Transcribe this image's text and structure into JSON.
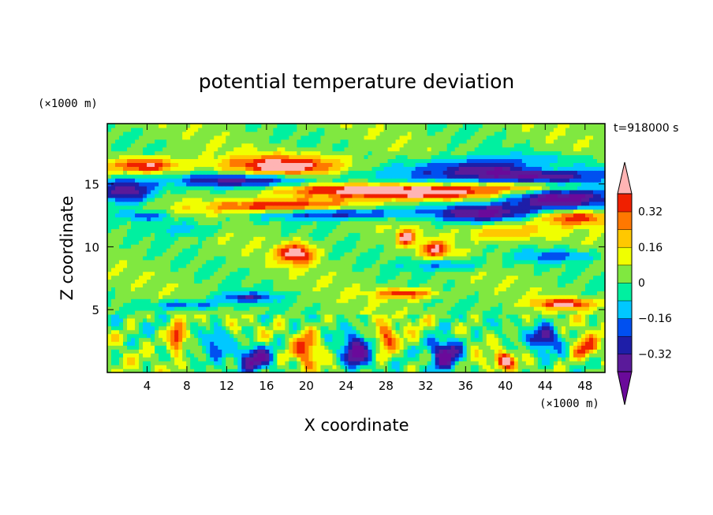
{
  "chart_data": {
    "type": "heatmap",
    "title": "potential temperature deviation",
    "xlabel": "X coordinate",
    "ylabel": "Z coordinate",
    "x_unit": "(×1000 m)",
    "y_unit": "(×1000 m)",
    "time_label": "t=918000 s",
    "xlim": [
      0,
      50
    ],
    "ylim": [
      0,
      19.8
    ],
    "x_ticks": [
      4,
      8,
      12,
      16,
      20,
      24,
      28,
      32,
      36,
      40,
      44,
      48
    ],
    "x_tick_labels": [
      "4",
      "8",
      "12",
      "16",
      "20",
      "24",
      "28",
      "32",
      "36",
      "40",
      "44",
      "48"
    ],
    "y_ticks": [
      5,
      10,
      15
    ],
    "y_tick_labels": [
      "5",
      "10",
      "15"
    ],
    "colorbar": {
      "levels": [
        -0.4,
        -0.32,
        -0.24,
        -0.16,
        -0.08,
        0,
        0.08,
        0.16,
        0.24,
        0.32,
        0.4
      ],
      "colors": [
        "#5a1a9a",
        "#1e1ea8",
        "#0050f0",
        "#00c8ff",
        "#00f0a0",
        "#80e840",
        "#f0ff00",
        "#ffc800",
        "#ff7800",
        "#f02000",
        "#ffb4b4"
      ],
      "under_color": "#6a0a9a",
      "over_color": "#ffb4b4",
      "tick_values": [
        -0.32,
        -0.16,
        0,
        0.16,
        0.32
      ],
      "tick_labels": [
        "−0.32",
        "−0.16",
        "0",
        "0.16",
        "0.32"
      ]
    },
    "features": [
      {
        "x": 4,
        "z": 16.5,
        "value": 0.4,
        "sx": 3.5,
        "sz": 0.6
      },
      {
        "x": 18,
        "z": 16.5,
        "value": 0.45,
        "sx": 6,
        "sz": 0.8
      },
      {
        "x": 14,
        "z": 15.3,
        "value": -0.4,
        "sx": 7,
        "sz": 0.6
      },
      {
        "x": 44,
        "z": 16.3,
        "value": 0.3,
        "sx": 4,
        "sz": 0.5
      },
      {
        "x": 40,
        "z": 16.0,
        "value": -0.5,
        "sx": 10,
        "sz": 1.0
      },
      {
        "x": 2,
        "z": 14.5,
        "value": -0.45,
        "sx": 3,
        "sz": 1.0
      },
      {
        "x": 25,
        "z": 14.6,
        "value": 0.3,
        "sx": 10,
        "sz": 0.5
      },
      {
        "x": 32,
        "z": 14.3,
        "value": 0.4,
        "sx": 8,
        "sz": 0.6
      },
      {
        "x": 43,
        "z": 14.8,
        "value": 0.45,
        "sx": 6,
        "sz": 0.5
      },
      {
        "x": 45,
        "z": 14.0,
        "value": -0.5,
        "sx": 6,
        "sz": 1.2
      },
      {
        "x": 17,
        "z": 13.2,
        "value": 0.45,
        "sx": 7,
        "sz": 0.6
      },
      {
        "x": 22,
        "z": 12.7,
        "value": -0.4,
        "sx": 8,
        "sz": 0.5
      },
      {
        "x": 38,
        "z": 12.7,
        "value": -0.4,
        "sx": 5,
        "sz": 0.7
      },
      {
        "x": 47,
        "z": 12.4,
        "value": 0.4,
        "sx": 4,
        "sz": 0.6
      },
      {
        "x": 4,
        "z": 12.5,
        "value": -0.25,
        "sx": 2.5,
        "sz": 0.4
      },
      {
        "x": 19,
        "z": 9.5,
        "value": 0.45,
        "sx": 1.8,
        "sz": 0.8
      },
      {
        "x": 33,
        "z": 9.8,
        "value": 0.35,
        "sx": 1.5,
        "sz": 0.7
      },
      {
        "x": 40,
        "z": 11.2,
        "value": 0.25,
        "sx": 4,
        "sz": 0.7
      },
      {
        "x": 30,
        "z": 10.8,
        "value": 0.45,
        "sx": 0.8,
        "sz": 0.6
      },
      {
        "x": 8,
        "z": 11.5,
        "value": -0.18,
        "sx": 3,
        "sz": 0.6
      },
      {
        "x": 34,
        "z": 8.6,
        "value": -0.22,
        "sx": 4,
        "sz": 0.5
      },
      {
        "x": 45,
        "z": 9.3,
        "value": -0.22,
        "sx": 4,
        "sz": 0.5
      },
      {
        "x": 30,
        "z": 6.3,
        "value": 0.35,
        "sx": 3,
        "sz": 0.4
      },
      {
        "x": 46,
        "z": 5.5,
        "value": 0.4,
        "sx": 3,
        "sz": 0.4
      },
      {
        "x": 14,
        "z": 6.0,
        "value": -0.3,
        "sx": 3,
        "sz": 0.4
      },
      {
        "x": 8,
        "z": 5.4,
        "value": -0.25,
        "sx": 4,
        "sz": 0.4
      },
      {
        "x": 7,
        "z": 2.8,
        "value": 0.45,
        "sx": 0.8,
        "sz": 1.1
      },
      {
        "x": 15,
        "z": 1.2,
        "value": -0.45,
        "sx": 1.8,
        "sz": 1.0
      },
      {
        "x": 20,
        "z": 2.0,
        "value": 0.3,
        "sx": 1.2,
        "sz": 1.5
      },
      {
        "x": 25,
        "z": 1.6,
        "value": -0.5,
        "sx": 1.4,
        "sz": 1.2
      },
      {
        "x": 28,
        "z": 2.6,
        "value": 0.35,
        "sx": 1.0,
        "sz": 1.1
      },
      {
        "x": 34,
        "z": 1.6,
        "value": -0.5,
        "sx": 1.6,
        "sz": 1.3
      },
      {
        "x": 40,
        "z": 1.0,
        "value": 0.45,
        "sx": 1.0,
        "sz": 0.6
      },
      {
        "x": 44,
        "z": 2.8,
        "value": -0.4,
        "sx": 1.4,
        "sz": 1.0
      },
      {
        "x": 48,
        "z": 2.0,
        "value": 0.3,
        "sx": 1.2,
        "sz": 1.0
      },
      {
        "x": 11,
        "z": 2.6,
        "value": -0.25,
        "sx": 1.2,
        "sz": 1.2
      }
    ]
  }
}
